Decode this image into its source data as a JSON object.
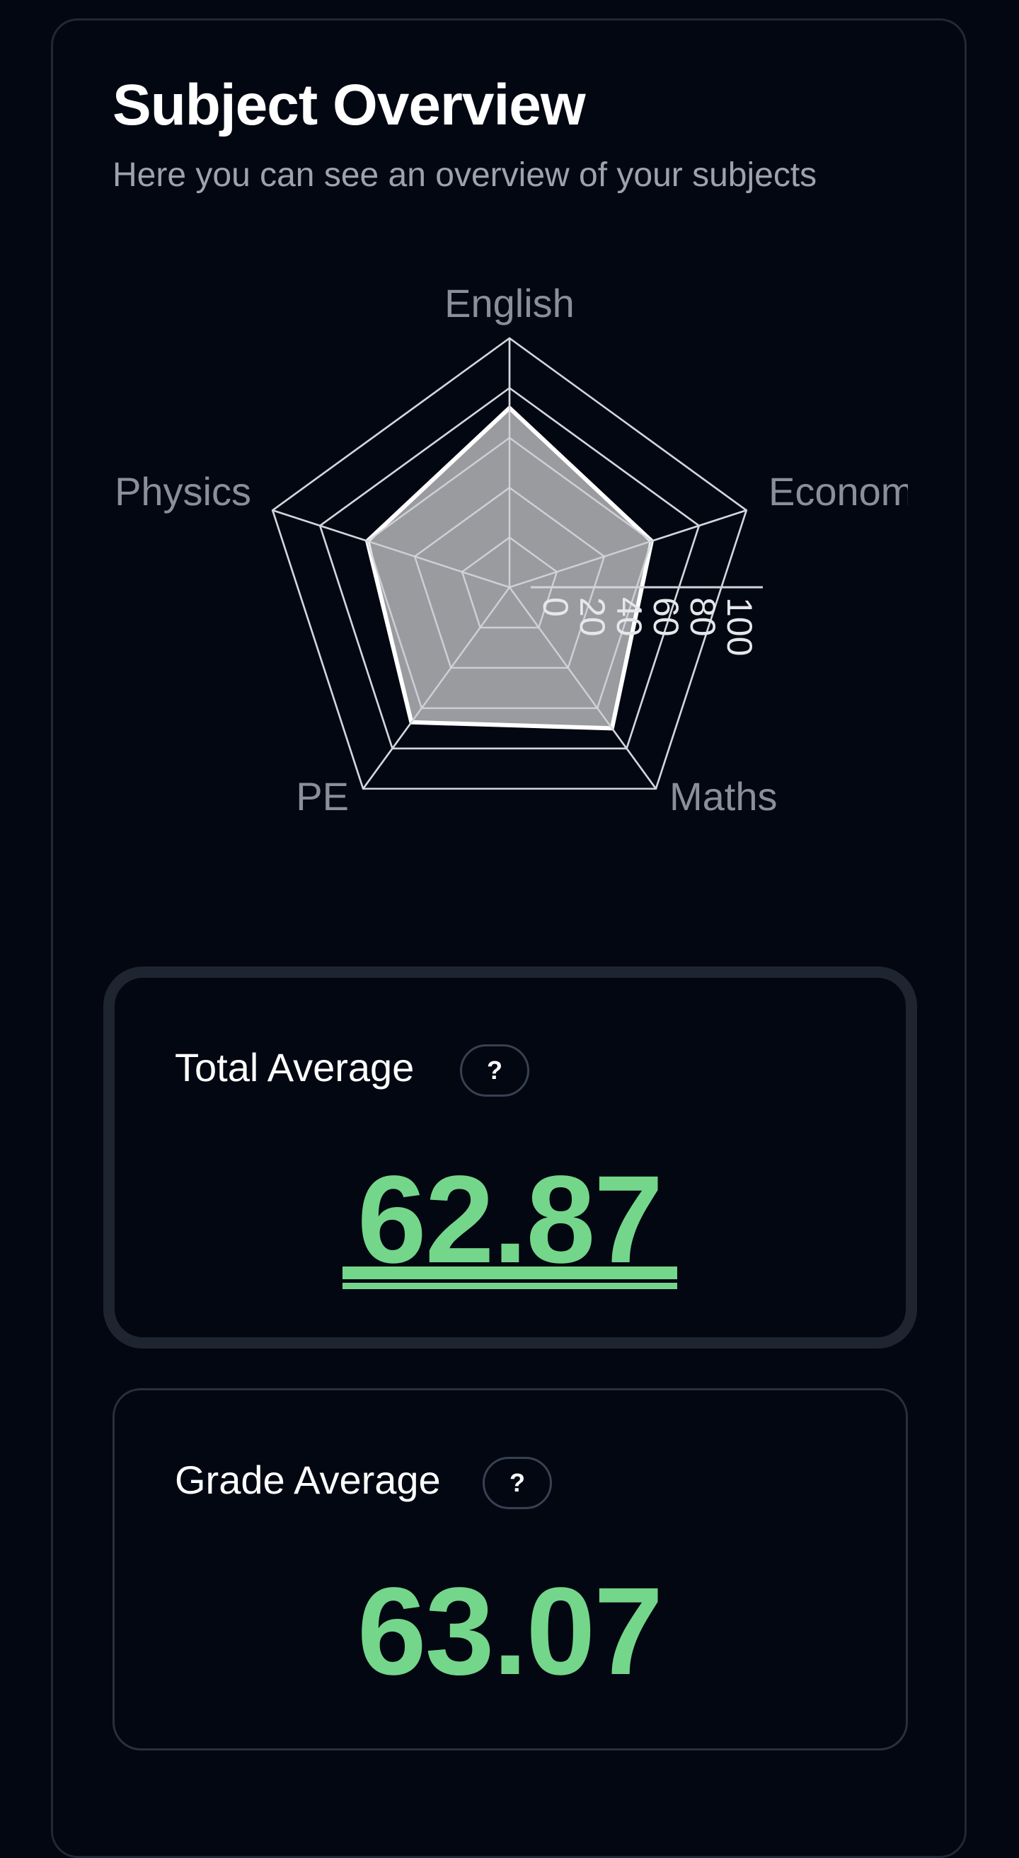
{
  "header": {
    "title": "Subject Overview",
    "subtitle": "Here you can see an overview of your subjects"
  },
  "chart_data": {
    "type": "radar",
    "categories": [
      "English",
      "Economics",
      "Maths",
      "PE",
      "Physics"
    ],
    "visible_category_labels": [
      "English",
      "Econom",
      "Maths",
      "PE",
      "Physics"
    ],
    "values": [
      72,
      60,
      70,
      67,
      60
    ],
    "ticks": [
      "0",
      "20",
      "40",
      "60",
      "80",
      "100"
    ],
    "rlim": [
      0,
      100
    ],
    "grid": true,
    "colors": {
      "fill": "#9a9b9f",
      "outline": "#ffffff",
      "grid": "#d1d5db"
    }
  },
  "stats": {
    "total": {
      "label": "Total Average",
      "help": "?",
      "value": "62.87"
    },
    "grade": {
      "label": "Grade Average",
      "help": "?",
      "value": "63.07"
    }
  },
  "colors": {
    "background": "#030712",
    "accent": "#74d68a",
    "muted_text": "#9ca3af",
    "border": "#1f2937"
  }
}
